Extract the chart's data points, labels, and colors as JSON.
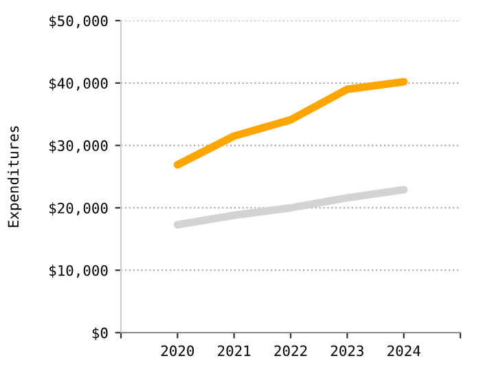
{
  "chart_data": {
    "type": "line",
    "ylabel": "Expenditures",
    "x": [
      2020,
      2021,
      2022,
      2023,
      2024
    ],
    "series": [
      {
        "color": "#ffa500",
        "values": [
          26900,
          31500,
          34100,
          39000,
          40200
        ]
      },
      {
        "color": "#d3d3d3",
        "values": [
          17300,
          18800,
          20000,
          21600,
          22900
        ]
      }
    ],
    "xlim": [
      2019,
      2025
    ],
    "xticks": [
      {
        "value": 2019,
        "label": null
      },
      2020,
      2021,
      2022,
      2023,
      2024,
      {
        "value": 2025,
        "label": null
      }
    ],
    "ylim": [
      0,
      50000
    ],
    "yticks": [
      {
        "value": 0,
        "label": "$0"
      },
      {
        "value": 10000,
        "label": "$10,000"
      },
      {
        "value": 20000,
        "label": "$20,000"
      },
      {
        "value": 30000,
        "label": "$30,000"
      },
      {
        "value": 40000,
        "label": "$40,000"
      },
      {
        "value": 50000,
        "label": "$50,000"
      }
    ],
    "grid": "y",
    "marker": "none",
    "line_style": "solid"
  }
}
